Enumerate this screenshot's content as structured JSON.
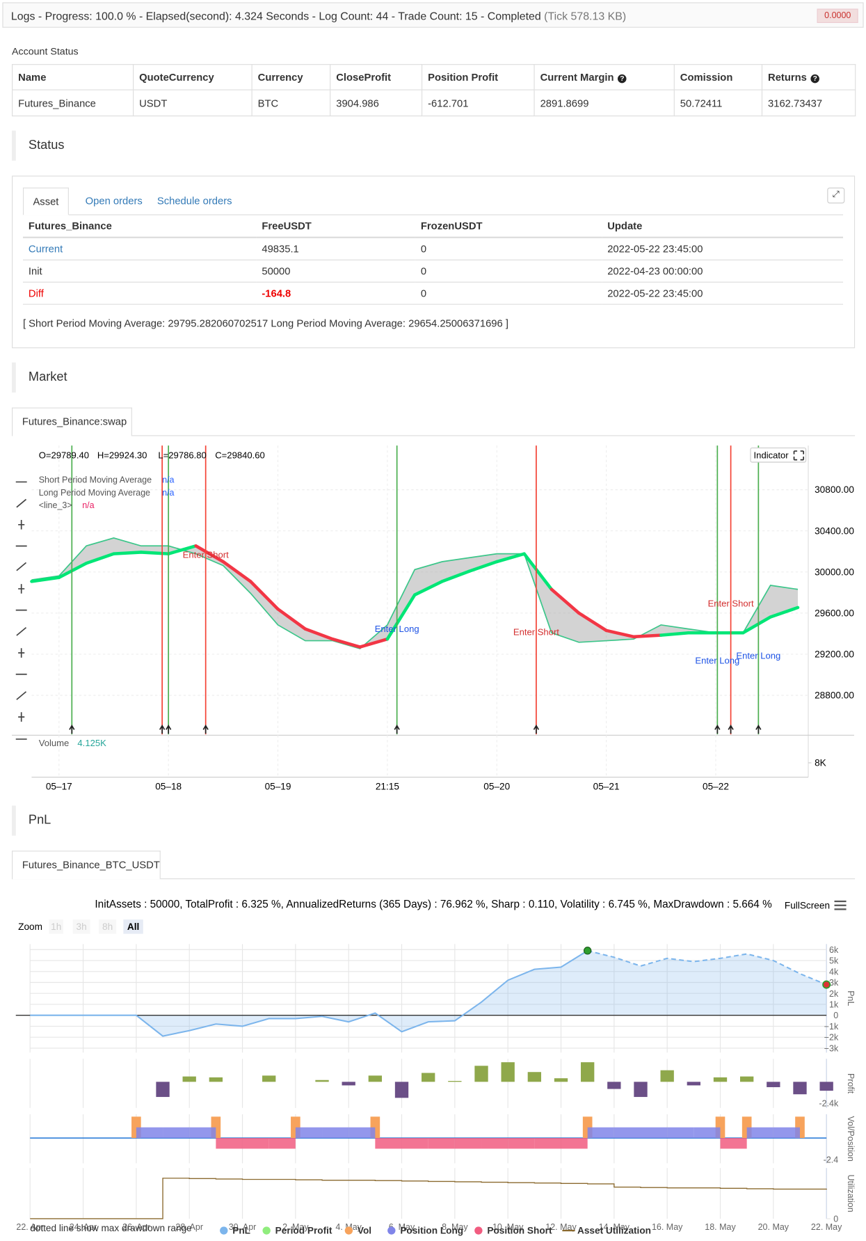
{
  "header": {
    "title": "Logs - Progress: 100.0 % - Elapsed(second): 4.324 Seconds - Log Count: 44 - Trade Count: 15 - Completed",
    "tick": "(Tick 578.13 KB)",
    "badge": "0.0000"
  },
  "account": {
    "label": "Account Status",
    "columns": [
      "Name",
      "QuoteCurrency",
      "Currency",
      "CloseProfit",
      "Position Profit",
      "Current Margin",
      "Comission",
      "Returns"
    ],
    "rows": [
      [
        "Futures_Binance",
        "USDT",
        "BTC",
        "3904.986",
        "-612.701",
        "2891.8699",
        "50.72411",
        "3162.73437"
      ]
    ]
  },
  "status": {
    "title": "Status",
    "tabs": [
      "Asset",
      "Open orders",
      "Schedule orders"
    ],
    "columns": [
      "Futures_Binance",
      "FreeUSDT",
      "FrozenUSDT",
      "Update"
    ],
    "rows": [
      [
        "Current",
        "49835.1",
        "0",
        "2022-05-22 23:45:00"
      ],
      [
        "Init",
        "50000",
        "0",
        "2022-04-23 00:00:00"
      ],
      [
        "Diff",
        "-164.8",
        "0",
        "2022-05-22 23:45:00"
      ]
    ],
    "note": "[ Short Period Moving Average: 29795.282060702517 Long Period Moving Average: 29654.25006371696 ]"
  },
  "market": {
    "title": "Market",
    "tab": "Futures_Binance:swap",
    "ohlc": [
      "O=29789.40",
      "H=29924.30",
      "L=29786.80",
      "C=29840.60"
    ],
    "indicator": "Indicator",
    "legend_extra": {
      "name": "<line_3>",
      "value": "n/a",
      "color": "#e91e63"
    },
    "volume": {
      "label": "Volume",
      "value": "4.125K",
      "ylim": [
        0,
        23000
      ],
      "yticks": [
        {
          "value": 8000,
          "label": "8K"
        }
      ]
    },
    "chart_data": {
      "type": "line",
      "categories": [
        null,
        "05–17",
        null,
        null,
        null,
        "05–18",
        null,
        null,
        null,
        "05–19",
        null,
        null,
        null,
        "21:15",
        null,
        null,
        null,
        "05–20",
        null,
        null,
        null,
        "05–21",
        null,
        null,
        null,
        "05–22",
        null,
        null,
        null
      ],
      "ylim": [
        28420,
        31230
      ],
      "yticks": [
        {
          "value": 28800,
          "label": "28800.00"
        },
        {
          "value": 29200,
          "label": "29200.00"
        },
        {
          "value": 29600,
          "label": "29600.00"
        },
        {
          "value": 30000,
          "label": "30000.00"
        },
        {
          "value": 30400,
          "label": "30400.00"
        },
        {
          "value": 30800,
          "label": "30800.00"
        }
      ],
      "grid": true,
      "band_color": "#9e9e9e",
      "series": [
        {
          "name": "Short Period Moving Average",
          "legend_value": "n/a",
          "color": "#3cc68a",
          "values": [
            29923,
            29962,
            30254,
            30331,
            30254,
            30254,
            30177,
            30062,
            29793,
            29485,
            29331,
            29331,
            29254,
            29485,
            30023,
            30100,
            30139,
            30177,
            30177,
            29408,
            29316,
            29331,
            29347,
            29485,
            29446,
            29408,
            29408,
            29870,
            29831
          ]
        },
        {
          "name": "Long Period Moving Average",
          "legend_value": "n/a",
          "color": "#00e676",
          "down_color": "#f23645",
          "values": [
            29908,
            29946,
            30085,
            30177,
            30192,
            30177,
            30254,
            30100,
            29908,
            29639,
            29446,
            29347,
            29270,
            29347,
            29777,
            29908,
            30008,
            30100,
            30177,
            29831,
            29600,
            29431,
            29370,
            29385,
            29408,
            29408,
            29408,
            29562,
            29654
          ]
        }
      ],
      "signals": [
        {
          "x": 1.47,
          "color": "#4caf50"
        },
        {
          "x": 4.77,
          "color": "#f44336"
        },
        {
          "x": 5.0,
          "color": "#4caf50"
        },
        {
          "x": 6.36,
          "color": "#f44336"
        },
        {
          "x": 13.35,
          "color": "#4caf50"
        },
        {
          "x": 18.44,
          "color": "#f44336"
        },
        {
          "x": 25.06,
          "color": "#4caf50"
        },
        {
          "x": 25.55,
          "color": "#f44336"
        },
        {
          "x": 26.56,
          "color": "#4caf50"
        }
      ],
      "annotations": [
        {
          "text": "Enter Short",
          "x": 6.36,
          "y": 30169,
          "color": "#d32f2f"
        },
        {
          "text": "Enter Long",
          "x": 13.35,
          "y": 29447,
          "color": "#1e53e5"
        },
        {
          "text": "Enter Short",
          "x": 18.44,
          "y": 29416,
          "color": "#d32f2f"
        },
        {
          "text": "Enter Short",
          "x": 25.55,
          "y": 29693,
          "color": "#d32f2f"
        },
        {
          "text": "Enter Long",
          "x": 25.06,
          "y": 29139,
          "color": "#1e53e5"
        },
        {
          "text": "Enter Long",
          "x": 26.56,
          "y": 29185,
          "color": "#1e53e5"
        }
      ]
    }
  },
  "pnl": {
    "title": "PnL",
    "tab": "Futures_Binance_BTC_USDT",
    "stats": "InitAssets : 50000, TotalProfit : 6.325 %, AnnualizedReturns (365 Days) : 76.962 %, Sharp : 0.110, Volatility : 6.745 %, MaxDrawdown : 5.664 %",
    "fullscreen": "FullScreen",
    "zoom": {
      "label": "Zoom",
      "buttons": [
        "1h",
        "3h",
        "8h",
        "All"
      ]
    },
    "note": "dotted line show max drawdown range",
    "chart_data": [
      {
        "type": "line",
        "y_label": "PnL",
        "categories": [
          "22. Apr",
          null,
          "24. Apr",
          null,
          "26. Apr",
          null,
          "28. Apr",
          null,
          "30. Apr",
          null,
          "2. May",
          null,
          "4. May",
          null,
          "6. May",
          null,
          "8. May",
          null,
          "10. May",
          null,
          "12. May",
          null,
          "14. May",
          null,
          "16. May",
          null,
          "18. May",
          null,
          "20. May",
          null,
          "22. May"
        ],
        "ylim": [
          -3400,
          6500
        ],
        "yticks": [
          {
            "value": -3000,
            "label": "−3k"
          },
          {
            "value": -2000,
            "label": "−2k"
          },
          {
            "value": -1000,
            "label": "−1k"
          },
          0,
          {
            "value": 1000,
            "label": "1k"
          },
          {
            "value": 2000,
            "label": "2k"
          },
          {
            "value": 3000,
            "label": "3k"
          },
          {
            "value": 4000,
            "label": "4k"
          },
          {
            "value": 5000,
            "label": "5k"
          },
          {
            "value": 6000,
            "label": "6k"
          }
        ],
        "grid": true,
        "series": [
          {
            "name": "PnL",
            "color": "#7cb5ec",
            "values": [
              0,
              0,
              0,
              0,
              0,
              -1900,
              -1400,
              -800,
              -1000,
              -300,
              -300,
              -100,
              -600,
              200,
              -1500,
              -600,
              -500,
              1200,
              3200,
              4200,
              4400,
              5900,
              5300,
              4500,
              5200,
              4900,
              5200,
              5600,
              5000,
              3800,
              2800
            ]
          }
        ]
      },
      {
        "type": "bar",
        "y_label": "Profit",
        "ylim": [
          -2930,
          2580
        ],
        "yticks": [
          {
            "value": -2400,
            "label": "-2.4k"
          }
        ],
        "series": [
          {
            "name": "Period Profit",
            "color": "#90ed7d",
            "bar_color": "#8fa84b",
            "negative_color": "#6b4f87",
            "values": [
              null,
              null,
              null,
              null,
              null,
              -1700,
              600,
              500,
              null,
              700,
              null,
              200,
              -400,
              700,
              -1800,
              1000,
              100,
              1800,
              2200,
              1100,
              400,
              2200,
              -800,
              -1700,
              1300,
              -400,
              500,
              600,
              -600,
              -1400,
              -1000
            ]
          }
        ]
      },
      {
        "type": "bar",
        "y_label": "Vol/Position",
        "ylim": [
          -2.84,
          2.67
        ],
        "yticks": [
          -2.4
        ],
        "zero_line_color": "#2f7ed8",
        "series": [
          {
            "name": "Vol",
            "color": "#f7a35c",
            "values": [
              null,
              null,
              null,
              null,
              2.4,
              null,
              null,
              2.4,
              null,
              null,
              2.4,
              null,
              null,
              2.4,
              null,
              null,
              null,
              null,
              null,
              null,
              null,
              2.4,
              null,
              null,
              null,
              null,
              2.4,
              2.4,
              null,
              2.4,
              null
            ]
          },
          {
            "name": "Position Long",
            "color": "#8085e9",
            "values": [
              null,
              null,
              null,
              null,
              1.2,
              1.2,
              1.2,
              null,
              null,
              null,
              1.2,
              1.2,
              1.2,
              null,
              null,
              null,
              null,
              null,
              null,
              null,
              null,
              1.2,
              1.2,
              1.2,
              1.2,
              1.2,
              null,
              1.2,
              1.2,
              null,
              null
            ]
          },
          {
            "name": "Position Short",
            "color": "#f15c80",
            "values": [
              null,
              null,
              null,
              null,
              null,
              null,
              null,
              -1.2,
              -1.2,
              -1.2,
              null,
              null,
              null,
              -1.2,
              -1.2,
              -1.2,
              -1.2,
              -1.2,
              -1.2,
              -1.2,
              -1.2,
              null,
              null,
              null,
              null,
              null,
              -1.2,
              null,
              null,
              null,
              null
            ]
          }
        ]
      },
      {
        "type": "line",
        "y_label": "Utilization",
        "step": true,
        "ylim": [
          0,
          1.25
        ],
        "yticks": [
          0
        ],
        "series": [
          {
            "name": "Asset Utilization",
            "color": "#8b6a2f",
            "values": [
              0,
              0,
              0,
              0,
              0,
              1,
              0.99,
              0.98,
              0.97,
              0.97,
              0.96,
              0.95,
              0.95,
              0.94,
              0.93,
              0.92,
              0.91,
              0.9,
              0.89,
              0.88,
              0.87,
              0.86,
              0.78,
              0.77,
              0.76,
              0.76,
              0.75,
              0.74,
              0.73,
              0.73,
              0.74
            ]
          }
        ]
      }
    ]
  }
}
